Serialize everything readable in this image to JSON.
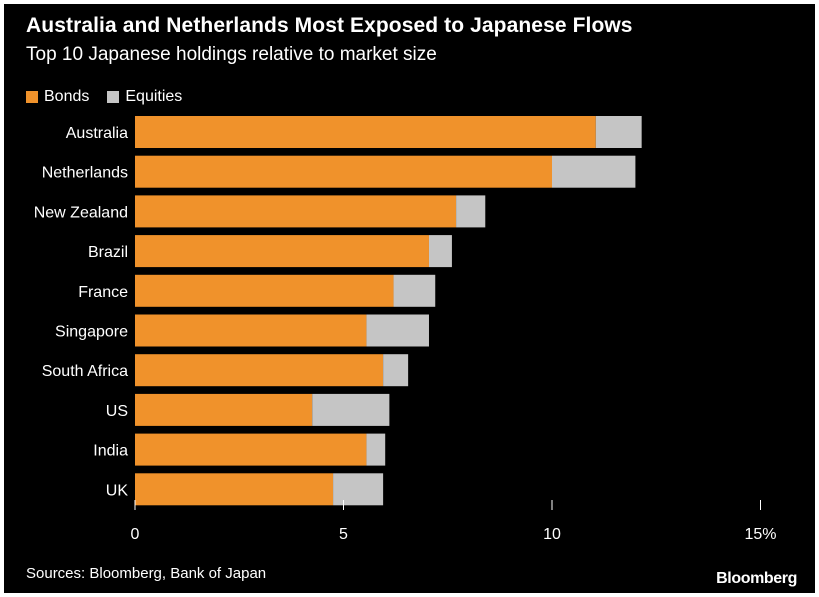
{
  "chart_data": {
    "type": "bar",
    "orientation": "horizontal",
    "stacked": true,
    "title": "Australia and Netherlands Most Exposed to Japanese Flows",
    "subtitle": "Top 10 Japanese holdings relative to market size",
    "categories": [
      "Australia",
      "Netherlands",
      "New Zealand",
      "Brazil",
      "France",
      "Singapore",
      "South Africa",
      "US",
      "India",
      "UK"
    ],
    "series": [
      {
        "name": "Bonds",
        "color": "#f0922b",
        "values": [
          11.05,
          10.0,
          7.7,
          7.05,
          6.2,
          5.55,
          5.95,
          4.25,
          5.55,
          4.75
        ]
      },
      {
        "name": "Equities",
        "color": "#c5c5c5",
        "values": [
          1.1,
          2.0,
          0.7,
          0.55,
          1.0,
          1.5,
          0.6,
          1.85,
          0.45,
          1.2
        ]
      }
    ],
    "x_ticks": [
      "0",
      "5",
      "10",
      "15%"
    ],
    "xlim": [
      0,
      15
    ],
    "grid": false,
    "legend": "top-left"
  },
  "footer": {
    "source": "Sources: Bloomberg, Bank of Japan",
    "brand": "Bloomberg"
  }
}
